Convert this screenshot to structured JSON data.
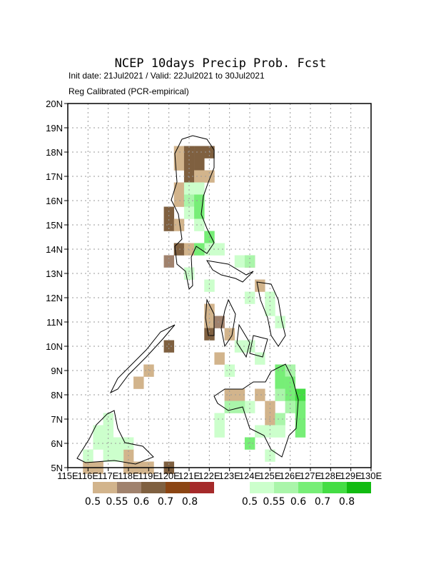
{
  "map": {
    "title": "NCEP 10days Precip Prob. Fcst",
    "subtitle": "Init date: 21Jul2021 / Valid: 22Jul2021 to 30Jul2021",
    "note": "Reg Calibrated (PCR-empirical)",
    "lonlim": [
      115,
      130
    ],
    "latlim": [
      5,
      20
    ],
    "lon_ticks": [
      {
        "value": 115,
        "label": "115E"
      },
      {
        "value": 116,
        "label": "116E"
      },
      {
        "value": 117,
        "label": "117E"
      },
      {
        "value": 118,
        "label": "118E"
      },
      {
        "value": 119,
        "label": "119E"
      },
      {
        "value": 120,
        "label": "120E"
      },
      {
        "value": 121,
        "label": "121E"
      },
      {
        "value": 122,
        "label": "122E"
      },
      {
        "value": 123,
        "label": "123E"
      },
      {
        "value": 124,
        "label": "124E"
      },
      {
        "value": 125,
        "label": "125E"
      },
      {
        "value": 126,
        "label": "126E"
      },
      {
        "value": 127,
        "label": "127E"
      },
      {
        "value": 128,
        "label": "128E"
      },
      {
        "value": 129,
        "label": "129E"
      },
      {
        "value": 130,
        "label": "130E"
      }
    ],
    "lat_ticks": [
      {
        "value": 5,
        "label": "5N"
      },
      {
        "value": 6,
        "label": "6N"
      },
      {
        "value": 7,
        "label": "7N"
      },
      {
        "value": 8,
        "label": "8N"
      },
      {
        "value": 9,
        "label": "9N"
      },
      {
        "value": 10,
        "label": "10N"
      },
      {
        "value": 11,
        "label": "11N"
      },
      {
        "value": 12,
        "label": "12N"
      },
      {
        "value": 13,
        "label": "13N"
      },
      {
        "value": 14,
        "label": "14N"
      },
      {
        "value": 15,
        "label": "15N"
      },
      {
        "value": 16,
        "label": "16N"
      },
      {
        "value": 17,
        "label": "17N"
      },
      {
        "value": 18,
        "label": "18N"
      },
      {
        "value": 19,
        "label": "19N"
      },
      {
        "value": 20,
        "label": "20N"
      }
    ],
    "dry_legend": {
      "levels": [
        0.5,
        0.55,
        0.6,
        0.7,
        0.8
      ],
      "colors": [
        "#d2b48c",
        "#a0826d",
        "#7f6040",
        "#8b4513",
        "#a52a2a"
      ]
    },
    "wet_legend": {
      "levels": [
        0.5,
        0.55,
        0.6,
        0.7,
        0.8
      ],
      "colors": [
        "#ccffcc",
        "#aaf5aa",
        "#77ee77",
        "#44dd44",
        "#11bb11"
      ]
    },
    "dry_cells": [
      [
        120.5,
        18,
        0.5
      ],
      [
        121,
        18,
        0.6
      ],
      [
        121.5,
        18,
        0.6
      ],
      [
        122,
        18,
        0.6
      ],
      [
        120.5,
        17.5,
        0.5
      ],
      [
        121,
        17.5,
        0.6
      ],
      [
        121.5,
        17.5,
        0.6
      ],
      [
        121,
        17,
        0.6
      ],
      [
        121.5,
        17,
        0.5
      ],
      [
        122,
        17,
        0.5
      ],
      [
        120.5,
        16.5,
        0.5
      ],
      [
        120.5,
        16,
        0.5
      ],
      [
        120,
        15.5,
        0.6
      ],
      [
        120,
        15,
        0.6
      ],
      [
        120.5,
        15,
        0.5
      ],
      [
        120.5,
        14,
        0.6
      ],
      [
        121,
        14,
        0.5
      ],
      [
        120,
        13.5,
        0.55
      ],
      [
        122,
        11.5,
        0.5
      ],
      [
        122,
        11,
        0.5
      ],
      [
        122.5,
        11,
        0.55
      ],
      [
        122,
        10.5,
        0.6
      ],
      [
        123,
        10.5,
        0.5
      ],
      [
        122.5,
        9.5,
        0.5
      ],
      [
        124.5,
        12.5,
        0.5
      ],
      [
        124,
        13.5,
        0.5
      ],
      [
        120,
        10,
        0.6
      ],
      [
        119,
        9,
        0.5
      ],
      [
        118.5,
        8.5,
        0.5
      ],
      [
        123,
        8,
        0.5
      ],
      [
        123.5,
        8,
        0.5
      ],
      [
        124.5,
        8,
        0.5
      ],
      [
        125,
        7,
        0.5
      ],
      [
        125,
        7.5,
        0.5
      ],
      [
        116,
        5,
        0.5
      ],
      [
        116.5,
        5,
        0.5
      ],
      [
        118,
        5.5,
        0.5
      ],
      [
        118,
        5,
        0.5
      ],
      [
        118.5,
        5,
        0.5
      ],
      [
        119,
        5,
        0.5
      ],
      [
        120,
        5,
        0.6
      ]
    ],
    "wet_cells": [
      [
        121,
        16.5,
        0.5
      ],
      [
        121.5,
        16.5,
        0.5
      ],
      [
        121,
        16,
        0.55
      ],
      [
        121.5,
        16,
        0.6
      ],
      [
        121,
        15.5,
        0.5
      ],
      [
        121.5,
        15.5,
        0.6
      ],
      [
        121.5,
        15,
        0.5
      ],
      [
        122,
        14.5,
        0.6
      ],
      [
        122,
        14,
        0.5
      ],
      [
        121.5,
        14,
        0.6
      ],
      [
        122.5,
        14,
        0.5
      ],
      [
        123.5,
        13.5,
        0.5
      ],
      [
        124,
        13.5,
        0.55
      ],
      [
        121,
        13,
        0.5
      ],
      [
        122,
        12.5,
        0.5
      ],
      [
        124,
        12,
        0.5
      ],
      [
        125,
        12,
        0.5
      ],
      [
        125,
        11.5,
        0.5
      ],
      [
        125.5,
        11,
        0.5
      ],
      [
        123.5,
        10,
        0.5
      ],
      [
        124,
        10,
        0.5
      ],
      [
        124.5,
        9.5,
        0.5
      ],
      [
        123,
        9,
        0.5
      ],
      [
        125.5,
        9,
        0.6
      ],
      [
        126,
        9,
        0.55
      ],
      [
        125.5,
        8.5,
        0.6
      ],
      [
        126,
        8.5,
        0.6
      ],
      [
        125.5,
        8,
        0.55
      ],
      [
        126,
        8,
        0.6
      ],
      [
        126.5,
        8,
        0.7
      ],
      [
        126.5,
        7.5,
        0.6
      ],
      [
        126,
        7.5,
        0.55
      ],
      [
        126.5,
        7,
        0.6
      ],
      [
        126.5,
        6.5,
        0.6
      ],
      [
        125.5,
        7,
        0.55
      ],
      [
        125.5,
        6.5,
        0.5
      ],
      [
        125,
        6.5,
        0.5
      ],
      [
        124.5,
        6.5,
        0.5
      ],
      [
        124,
        6,
        0.6
      ],
      [
        125,
        5.5,
        0.5
      ],
      [
        124,
        7.5,
        0.5
      ],
      [
        123.5,
        7.5,
        0.55
      ],
      [
        123,
        7.5,
        0.55
      ],
      [
        122.5,
        7,
        0.5
      ],
      [
        122.5,
        6.5,
        0.5
      ],
      [
        117,
        7,
        0.5
      ],
      [
        117,
        6.5,
        0.5
      ],
      [
        116.5,
        6.5,
        0.5
      ],
      [
        116.5,
        6,
        0.5
      ],
      [
        117,
        6,
        0.5
      ],
      [
        117.5,
        6,
        0.5
      ],
      [
        117,
        5.5,
        0.5
      ],
      [
        116,
        5.5,
        0.5
      ],
      [
        117.5,
        5.5,
        0.5
      ],
      [
        118,
        6,
        0.5
      ]
    ]
  }
}
